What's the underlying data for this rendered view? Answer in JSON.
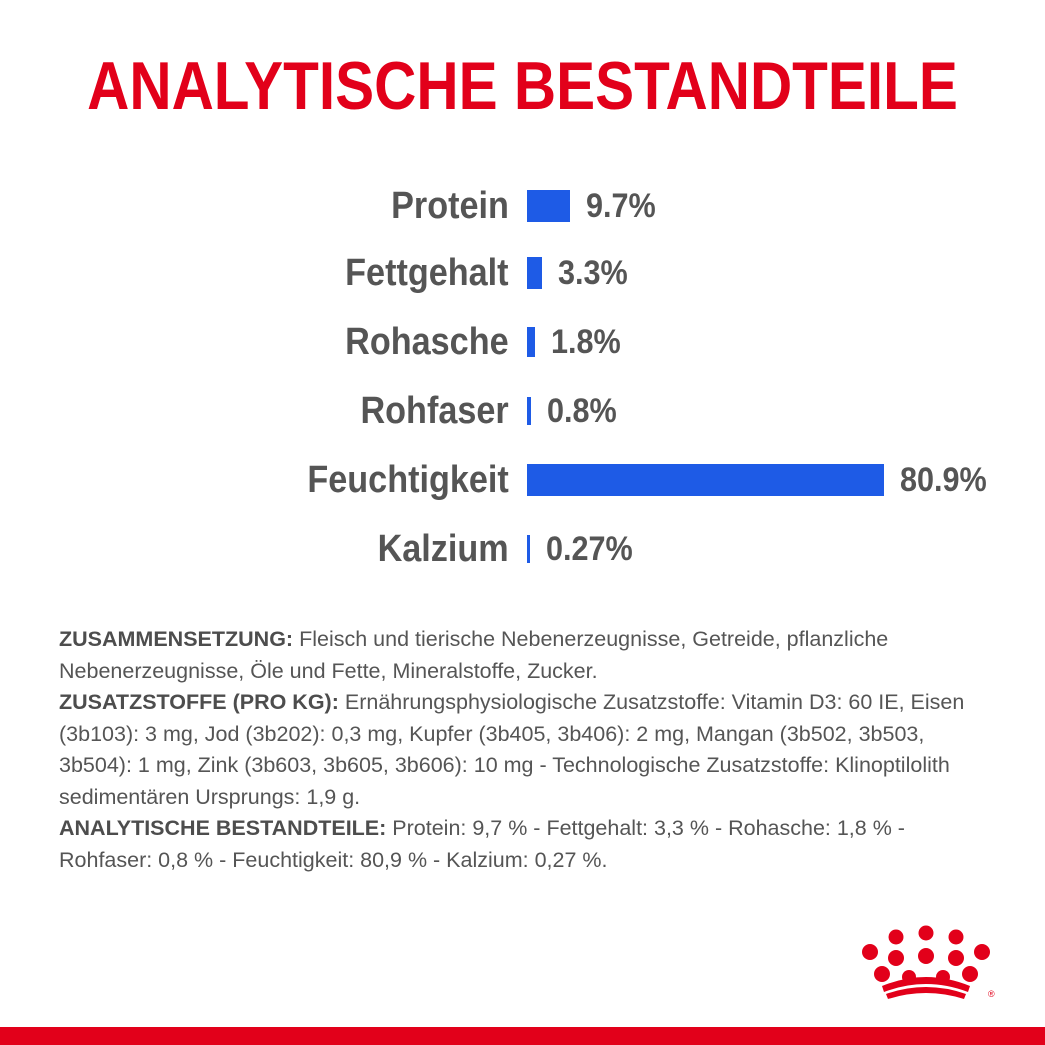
{
  "title": "ANALYTISCHE BESTANDTEILE",
  "colors": {
    "brand_red": "#e2001a",
    "bar_blue": "#1e5be6",
    "text_grey": "#555555"
  },
  "chart_data": {
    "type": "bar",
    "orientation": "horizontal",
    "title": "ANALYTISCHE BESTANDTEILE",
    "categories": [
      "Protein",
      "Fettgehalt",
      "Rohasche",
      "Rohfaser",
      "Feuchtigkeit",
      "Kalzium"
    ],
    "values": [
      9.7,
      3.3,
      1.8,
      0.8,
      80.9,
      0.27
    ],
    "value_labels": [
      "9.7%",
      "3.3%",
      "1.8%",
      "0.8%",
      "80.9%",
      "0.27%"
    ],
    "unit": "%",
    "grid": false
  },
  "composition": {
    "label": "ZUSAMMENSETZUNG:",
    "text": " Fleisch und tierische Nebenerzeugnisse, Getreide, pflanzliche Nebenerzeugnisse, Öle und Fette, Mineralstoffe, Zucker."
  },
  "additives": {
    "label": "ZUSATZSTOFFE (PRO KG):",
    "text": " Ernährungsphysiologische Zusatzstoffe: Vitamin D3: 60 IE, Eisen (3b103): 3 mg, Jod (3b202): 0,3 mg, Kupfer (3b405, 3b406): 2 mg, Mangan (3b502, 3b503, 3b504): 1 mg, Zink (3b603, 3b605, 3b606): 10 mg - Technologische Zusatzstoffe: Klinoptilolith sedimentären Ursprungs: 1,9 g."
  },
  "analytical": {
    "label": "ANALYTISCHE BESTANDTEILE:",
    "text": " Protein: 9,7 % - Fettgehalt: 3,3 % - Rohasche: 1,8 % - Rohfaser: 0,8 % - Feuchtigkeit: 80,9 % - Kalzium: 0,27 %."
  },
  "logo": {
    "icon": "royal-canin-crown-logo-icon",
    "registered_mark": "®"
  }
}
